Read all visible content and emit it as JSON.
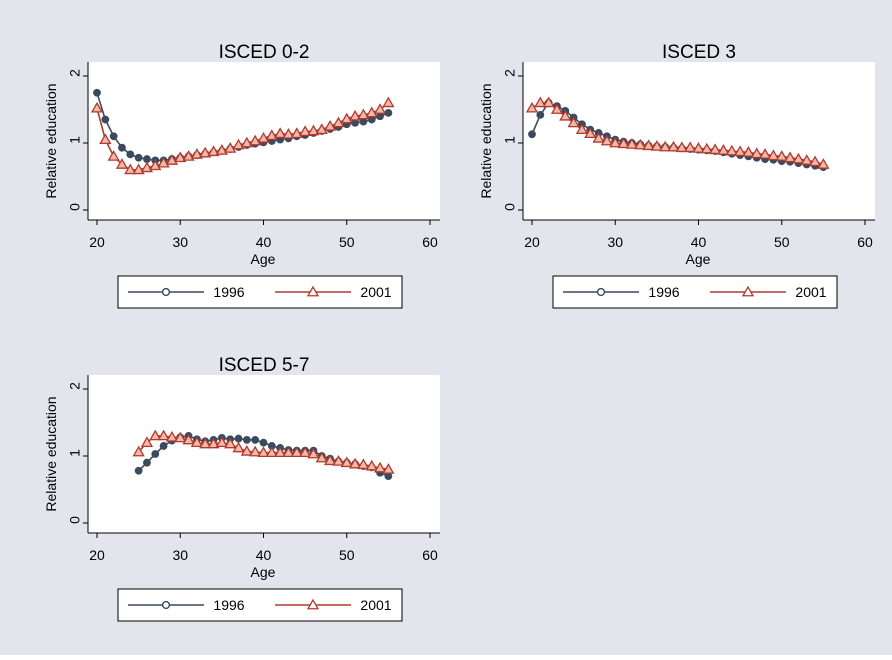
{
  "colors": {
    "background": "#e4e4ec",
    "plot_background": "#ffffff",
    "series_1996": "#3b4a5e",
    "series_2001": "#b03a2e",
    "text": "#000000",
    "axis": "#000000"
  },
  "y_axis_label": "Relative education",
  "x_axis_label": "Age",
  "legend_labels": [
    "1996",
    "2001"
  ],
  "chart_data": [
    {
      "type": "line",
      "title": "ISCED 0-2",
      "xlabel": "Age",
      "ylabel": "Relative education",
      "xlim": [
        20,
        60
      ],
      "ylim": [
        0,
        2
      ],
      "xticks": [
        20,
        30,
        40,
        50,
        60
      ],
      "yticks": [
        0,
        1,
        2
      ],
      "grid": false,
      "legend": "bottom",
      "series": [
        {
          "name": "1996",
          "marker": "circle",
          "x": [
            20,
            21,
            22,
            23,
            24,
            25,
            26,
            27,
            28,
            29,
            30,
            31,
            32,
            33,
            34,
            35,
            36,
            37,
            38,
            39,
            40,
            41,
            42,
            43,
            44,
            45,
            46,
            47,
            48,
            49,
            50,
            51,
            52,
            53,
            54,
            55
          ],
          "values": [
            1.75,
            1.35,
            1.1,
            0.93,
            0.83,
            0.78,
            0.76,
            0.74,
            0.74,
            0.76,
            0.78,
            0.8,
            0.82,
            0.84,
            0.86,
            0.88,
            0.91,
            0.94,
            0.97,
            0.99,
            1.01,
            1.03,
            1.05,
            1.07,
            1.1,
            1.12,
            1.15,
            1.18,
            1.21,
            1.24,
            1.28,
            1.3,
            1.32,
            1.35,
            1.4,
            1.45
          ]
        },
        {
          "name": "2001",
          "marker": "triangle",
          "x": [
            20,
            21,
            22,
            23,
            24,
            25,
            26,
            27,
            28,
            29,
            30,
            31,
            32,
            33,
            34,
            35,
            36,
            37,
            38,
            39,
            40,
            41,
            42,
            43,
            44,
            45,
            46,
            47,
            48,
            49,
            50,
            51,
            52,
            53,
            54,
            55
          ],
          "values": [
            1.52,
            1.05,
            0.8,
            0.68,
            0.6,
            0.6,
            0.63,
            0.66,
            0.7,
            0.74,
            0.78,
            0.8,
            0.83,
            0.85,
            0.87,
            0.89,
            0.92,
            0.97,
            1.0,
            1.03,
            1.07,
            1.11,
            1.14,
            1.13,
            1.14,
            1.17,
            1.18,
            1.2,
            1.25,
            1.3,
            1.36,
            1.4,
            1.42,
            1.45,
            1.5,
            1.6
          ]
        }
      ]
    },
    {
      "type": "line",
      "title": "ISCED 3",
      "xlabel": "Age",
      "ylabel": "Relative education",
      "xlim": [
        20,
        60
      ],
      "ylim": [
        0,
        2
      ],
      "xticks": [
        20,
        30,
        40,
        50,
        60
      ],
      "yticks": [
        0,
        1,
        2
      ],
      "grid": false,
      "legend": "bottom",
      "series": [
        {
          "name": "1996",
          "marker": "circle",
          "x": [
            20,
            21,
            22,
            23,
            24,
            25,
            26,
            27,
            28,
            29,
            30,
            31,
            32,
            33,
            34,
            35,
            36,
            37,
            38,
            39,
            40,
            41,
            42,
            43,
            44,
            45,
            46,
            47,
            48,
            49,
            50,
            51,
            52,
            53,
            54,
            55
          ],
          "values": [
            1.13,
            1.42,
            1.6,
            1.55,
            1.48,
            1.38,
            1.28,
            1.2,
            1.15,
            1.1,
            1.05,
            1.02,
            1.0,
            0.98,
            0.96,
            0.95,
            0.94,
            0.93,
            0.92,
            0.91,
            0.9,
            0.89,
            0.88,
            0.86,
            0.84,
            0.82,
            0.8,
            0.78,
            0.76,
            0.75,
            0.73,
            0.72,
            0.7,
            0.68,
            0.66,
            0.64
          ]
        },
        {
          "name": "2001",
          "marker": "triangle",
          "x": [
            20,
            21,
            22,
            23,
            24,
            25,
            26,
            27,
            28,
            29,
            30,
            31,
            32,
            33,
            34,
            35,
            36,
            37,
            38,
            39,
            40,
            41,
            42,
            43,
            44,
            45,
            46,
            47,
            48,
            49,
            50,
            51,
            52,
            53,
            54,
            55
          ],
          "values": [
            1.52,
            1.6,
            1.6,
            1.5,
            1.4,
            1.3,
            1.2,
            1.14,
            1.07,
            1.03,
            1.0,
            0.99,
            0.98,
            0.97,
            0.96,
            0.95,
            0.94,
            0.94,
            0.93,
            0.93,
            0.92,
            0.91,
            0.9,
            0.89,
            0.88,
            0.87,
            0.86,
            0.84,
            0.83,
            0.81,
            0.8,
            0.78,
            0.76,
            0.74,
            0.72,
            0.68
          ]
        }
      ]
    },
    {
      "type": "line",
      "title": "ISCED 5-7",
      "xlabel": "Age",
      "ylabel": "Relative education",
      "xlim": [
        20,
        60
      ],
      "ylim": [
        0,
        2
      ],
      "xticks": [
        20,
        30,
        40,
        50,
        60
      ],
      "yticks": [
        0,
        1,
        2
      ],
      "grid": false,
      "legend": "bottom",
      "series": [
        {
          "name": "1996",
          "marker": "circle",
          "x": [
            25,
            26,
            27,
            28,
            29,
            30,
            31,
            32,
            33,
            34,
            35,
            36,
            37,
            38,
            39,
            40,
            41,
            42,
            43,
            44,
            45,
            46,
            47,
            48,
            49,
            50,
            51,
            52,
            53,
            54,
            55
          ],
          "values": [
            0.78,
            0.9,
            1.03,
            1.15,
            1.23,
            1.28,
            1.3,
            1.25,
            1.22,
            1.24,
            1.27,
            1.25,
            1.26,
            1.24,
            1.24,
            1.2,
            1.15,
            1.12,
            1.09,
            1.08,
            1.08,
            1.08,
            1.0,
            0.96,
            0.92,
            0.9,
            0.88,
            0.85,
            0.83,
            0.75,
            0.7
          ]
        },
        {
          "name": "2001",
          "marker": "triangle",
          "x": [
            25,
            26,
            27,
            28,
            29,
            30,
            31,
            32,
            33,
            34,
            35,
            36,
            37,
            38,
            39,
            40,
            41,
            42,
            43,
            44,
            45,
            46,
            47,
            48,
            49,
            50,
            51,
            52,
            53,
            54,
            55
          ],
          "values": [
            1.06,
            1.2,
            1.3,
            1.3,
            1.28,
            1.27,
            1.24,
            1.2,
            1.18,
            1.18,
            1.2,
            1.18,
            1.12,
            1.07,
            1.06,
            1.05,
            1.05,
            1.05,
            1.05,
            1.05,
            1.05,
            1.03,
            0.97,
            0.93,
            0.92,
            0.9,
            0.88,
            0.87,
            0.85,
            0.82,
            0.8
          ]
        }
      ]
    }
  ]
}
